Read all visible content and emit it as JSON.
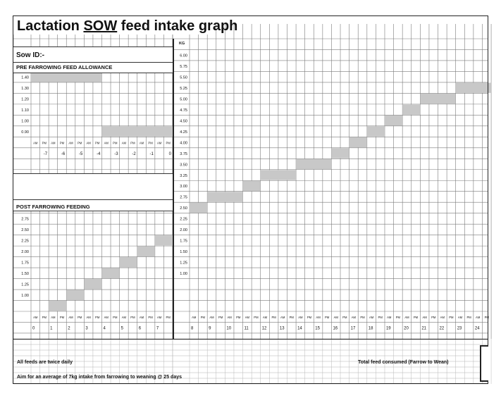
{
  "title": {
    "prefix": "Lactation ",
    "underlined": "SOW",
    "suffix": " feed intake graph"
  },
  "sow_id_label": "Sow ID:-",
  "pre_farrowing": {
    "heading": "PRE FARROWING FEED ALLOWANCE",
    "y_labels": [
      "1.40",
      "1.30",
      "1.20",
      "1.10",
      "1.00",
      "0.90"
    ],
    "day_labels": [
      "-7",
      "-6",
      "-5",
      "-4",
      "-3",
      "-2",
      "-1",
      "0"
    ]
  },
  "post_farrowing": {
    "heading": "POST FARROWING FEEDING",
    "y_labels": [
      "2.75",
      "2.50",
      "2.25",
      "2.00",
      "1.75",
      "1.50",
      "1.25",
      "1.00"
    ],
    "day_labels": [
      "0",
      "1",
      "2",
      "3",
      "4",
      "5",
      "6",
      "7"
    ]
  },
  "main_chart": {
    "unit_label": "KG",
    "y_labels": [
      "6.00",
      "5.75",
      "5.50",
      "5.25",
      "5.00",
      "4.75",
      "4.50",
      "4.25",
      "4.00",
      "3.75",
      "3.50",
      "3.25",
      "3.00",
      "2.75",
      "2.50",
      "2.25",
      "2.00",
      "1.75",
      "1.50",
      "1.25",
      "1.00"
    ],
    "day_labels": [
      "8",
      "9",
      "10",
      "11",
      "12",
      "13",
      "14",
      "15",
      "16",
      "17",
      "18",
      "19",
      "20",
      "21",
      "22",
      "23",
      "24"
    ]
  },
  "am_label": "AM",
  "pm_label": "PM",
  "footer": {
    "note_twice_daily": "All feeds are twice daily",
    "note_aim": "Aim for an average of 7kg intake from farrowing to weaning @ 25 days",
    "total_feed_label": "Total feed consumed (Farrow to Wean)"
  },
  "colors": {
    "grid": "#7a7a7a",
    "shade": "#c8c8c8",
    "border": "#222222"
  }
}
